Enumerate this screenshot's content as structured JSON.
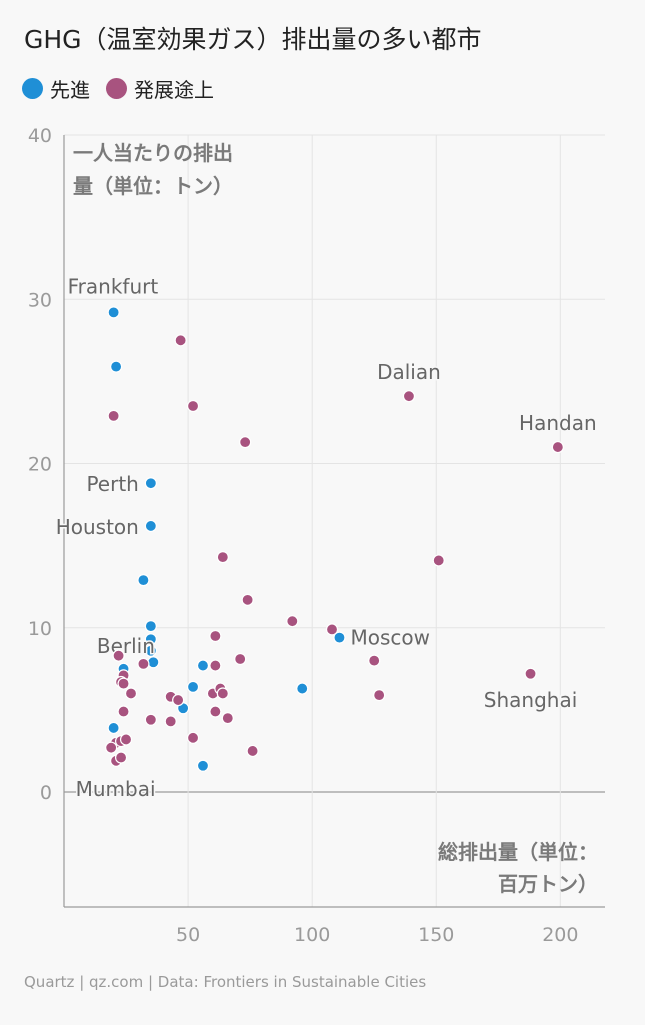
{
  "title": "GHG（温室効果ガス）排出量の多い都市",
  "legend": [
    {
      "label": "先進",
      "color": "#1f8fd6"
    },
    {
      "label": "発展途上",
      "color": "#a8537f"
    }
  ],
  "source": "Quartz | qz.com | Data: Frontiers in Sustainable Cities",
  "chart_data": {
    "type": "scatter",
    "ylabel_lines": [
      "一人当たりの排出",
      "量（単位：トン）"
    ],
    "xlabel_lines": [
      "総排出量（単位：",
      "百万トン）"
    ],
    "xlim": [
      0,
      218
    ],
    "ylim": [
      -7,
      40
    ],
    "xticks": [
      50,
      100,
      150,
      200
    ],
    "yticks": [
      0,
      10,
      20,
      30,
      40
    ],
    "grid": true,
    "series": [
      {
        "name": "先進",
        "color": "#1f8fd6",
        "points": [
          {
            "x": 20,
            "y": 29.2,
            "label": "Frankfurt"
          },
          {
            "x": 21,
            "y": 25.9
          },
          {
            "x": 35,
            "y": 18.8,
            "label": "Perth"
          },
          {
            "x": 35,
            "y": 16.2,
            "label": "Houston"
          },
          {
            "x": 32,
            "y": 12.9
          },
          {
            "x": 35,
            "y": 10.1
          },
          {
            "x": 35,
            "y": 9.3
          },
          {
            "x": 35,
            "y": 8.6,
            "label": "Berlin"
          },
          {
            "x": 36,
            "y": 7.9
          },
          {
            "x": 56,
            "y": 7.7
          },
          {
            "x": 24,
            "y": 7.5
          },
          {
            "x": 52,
            "y": 6.4
          },
          {
            "x": 96,
            "y": 6.3
          },
          {
            "x": 111,
            "y": 9.4,
            "label": "Moscow"
          },
          {
            "x": 48,
            "y": 5.1
          },
          {
            "x": 20,
            "y": 3.9
          },
          {
            "x": 56,
            "y": 1.6
          },
          {
            "x": 20,
            "y": 0.0,
            "label": "Mumbai"
          }
        ]
      },
      {
        "name": "発展途上",
        "color": "#a8537f",
        "points": [
          {
            "x": 47,
            "y": 27.5
          },
          {
            "x": 20,
            "y": 22.9
          },
          {
            "x": 52,
            "y": 23.5
          },
          {
            "x": 73,
            "y": 21.3
          },
          {
            "x": 139,
            "y": 24.1,
            "label": "Dalian"
          },
          {
            "x": 199,
            "y": 21.0,
            "label": "Handan"
          },
          {
            "x": 151,
            "y": 14.1
          },
          {
            "x": 64,
            "y": 14.3
          },
          {
            "x": 74,
            "y": 11.7
          },
          {
            "x": 92,
            "y": 10.4
          },
          {
            "x": 108,
            "y": 9.9
          },
          {
            "x": 61,
            "y": 9.5
          },
          {
            "x": 22,
            "y": 8.3
          },
          {
            "x": 32,
            "y": 7.8
          },
          {
            "x": 61,
            "y": 7.7
          },
          {
            "x": 71,
            "y": 8.1
          },
          {
            "x": 125,
            "y": 8.0
          },
          {
            "x": 188,
            "y": 7.2,
            "label": "Shanghai"
          },
          {
            "x": 24,
            "y": 7.1
          },
          {
            "x": 23,
            "y": 6.7
          },
          {
            "x": 24,
            "y": 6.6
          },
          {
            "x": 27,
            "y": 6.0
          },
          {
            "x": 60,
            "y": 6.0
          },
          {
            "x": 63,
            "y": 6.3
          },
          {
            "x": 64,
            "y": 6.0
          },
          {
            "x": 127,
            "y": 5.9
          },
          {
            "x": 43,
            "y": 5.8
          },
          {
            "x": 46,
            "y": 5.6
          },
          {
            "x": 24,
            "y": 4.9
          },
          {
            "x": 61,
            "y": 4.9
          },
          {
            "x": 35,
            "y": 4.4
          },
          {
            "x": 43,
            "y": 4.3
          },
          {
            "x": 66,
            "y": 4.5
          },
          {
            "x": 52,
            "y": 3.3
          },
          {
            "x": 21,
            "y": 3.0
          },
          {
            "x": 23,
            "y": 3.1
          },
          {
            "x": 25,
            "y": 3.2
          },
          {
            "x": 19,
            "y": 2.7
          },
          {
            "x": 76,
            "y": 2.5
          },
          {
            "x": 21,
            "y": 1.9
          },
          {
            "x": 23,
            "y": 2.1
          }
        ]
      }
    ]
  }
}
